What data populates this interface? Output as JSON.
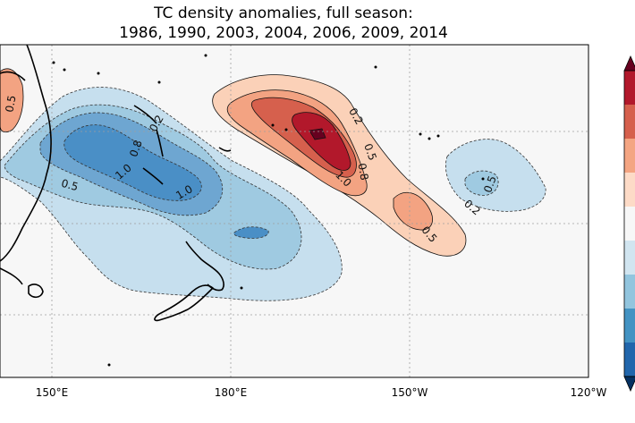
{
  "chart_data": {
    "type": "contour-map",
    "title_line1": "TC density anomalies, full season:",
    "title_line2": "1986, 1990, 2003, 2004, 2006, 2009, 2014",
    "x_ticks": [
      "150°E",
      "180°E",
      "150°W",
      "120°W"
    ],
    "gridlines": true,
    "colorbar": {
      "orientation": "vertical",
      "extend": "both",
      "colors": [
        "#67001f",
        "#b2182b",
        "#d6604d",
        "#f4a582",
        "#fddbc7",
        "#f7f7f7",
        "#d1e5f0",
        "#92c5de",
        "#4393c3",
        "#2166ac",
        "#053061"
      ]
    },
    "colors": {
      "positive": [
        "#fbd1b8",
        "#f3a382",
        "#d6604d",
        "#b2182b",
        "#67001f"
      ],
      "negative": [
        "#c6dfee",
        "#9fcae1",
        "#6ea6d1",
        "#4a8fc6",
        "#2f73b4"
      ],
      "background": "#f7f7f7"
    },
    "contour_labels": [
      {
        "text": "0.5",
        "sign": "negative"
      },
      {
        "text": "1.0",
        "sign": "negative"
      },
      {
        "text": "0.8",
        "sign": "negative"
      },
      {
        "text": "0.2",
        "sign": "negative"
      },
      {
        "text": "1.0",
        "sign": "negative"
      },
      {
        "text": "0.2",
        "sign": "positive"
      },
      {
        "text": "0.5",
        "sign": "positive"
      },
      {
        "text": "0.8",
        "sign": "positive"
      },
      {
        "text": "1.0",
        "sign": "positive"
      },
      {
        "text": "0.5",
        "sign": "positive"
      },
      {
        "text": "0.5",
        "sign": "negative"
      },
      {
        "text": "0.2",
        "sign": "negative"
      },
      {
        "text": "0.5",
        "sign": "positive"
      }
    ]
  }
}
